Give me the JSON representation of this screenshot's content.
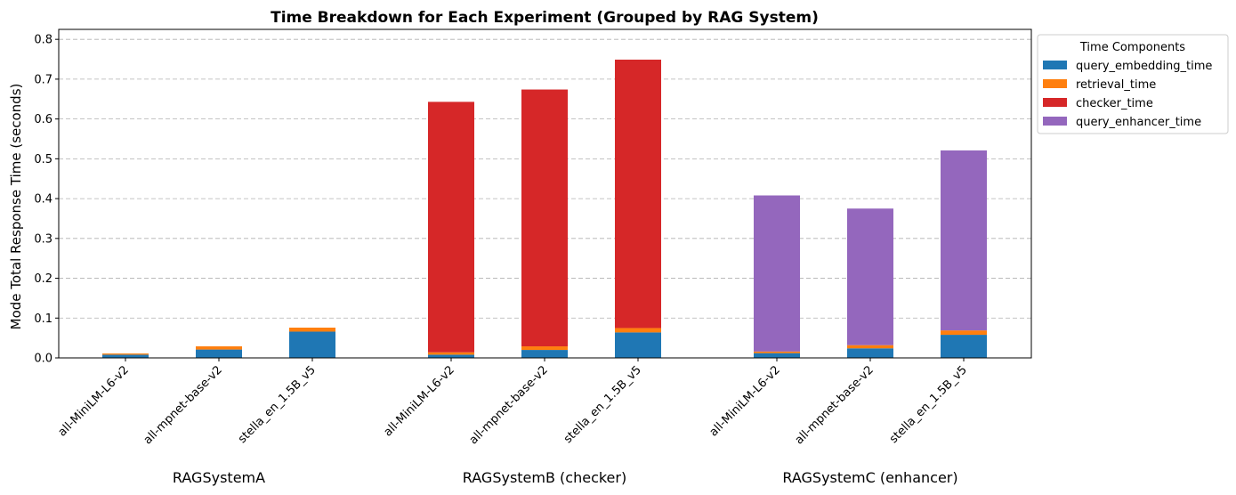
{
  "chart_data": {
    "type": "bar",
    "stacked": true,
    "title": "Time Breakdown for Each Experiment (Grouped by RAG System)",
    "xlabel": "",
    "ylabel": "Mode Total Response Time (seconds)",
    "ylim": [
      0,
      0.825
    ],
    "yticks": [
      "0.0",
      "0.1",
      "0.2",
      "0.3",
      "0.4",
      "0.5",
      "0.6",
      "0.7",
      "0.8"
    ],
    "grid": "y-dashed",
    "legend": {
      "title": "Time Components",
      "placement": "outside-top-right"
    },
    "groups": [
      {
        "label": "RAGSystemA",
        "categories": [
          "all-MiniLM-L6-v2",
          "all-mpnet-base-v2",
          "stella_en_1.5B_v5"
        ]
      },
      {
        "label": "RAGSystemB (checker)",
        "categories": [
          "all-MiniLM-L6-v2",
          "all-mpnet-base-v2",
          "stella_en_1.5B_v5"
        ]
      },
      {
        "label": "RAGSystemC (enhancer)",
        "categories": [
          "all-MiniLM-L6-v2",
          "all-mpnet-base-v2",
          "stella_en_1.5B_v5"
        ]
      }
    ],
    "series": [
      {
        "name": "query_embedding_time",
        "color": "#1f77b4",
        "values": [
          0.008,
          0.021,
          0.066,
          0.008,
          0.02,
          0.064,
          0.012,
          0.024,
          0.058
        ]
      },
      {
        "name": "retrieval_time",
        "color": "#ff7f0e",
        "values": [
          0.003,
          0.008,
          0.01,
          0.006,
          0.009,
          0.011,
          0.004,
          0.008,
          0.011
        ]
      },
      {
        "name": "checker_time",
        "color": "#d62728",
        "values": [
          0.0,
          0.0,
          0.0,
          0.629,
          0.645,
          0.674,
          0.0,
          0.0,
          0.0
        ]
      },
      {
        "name": "query_enhancer_time",
        "color": "#9467bd",
        "values": [
          0.0,
          0.0,
          0.0,
          0.0,
          0.0,
          0.0,
          0.392,
          0.343,
          0.452
        ]
      }
    ]
  }
}
